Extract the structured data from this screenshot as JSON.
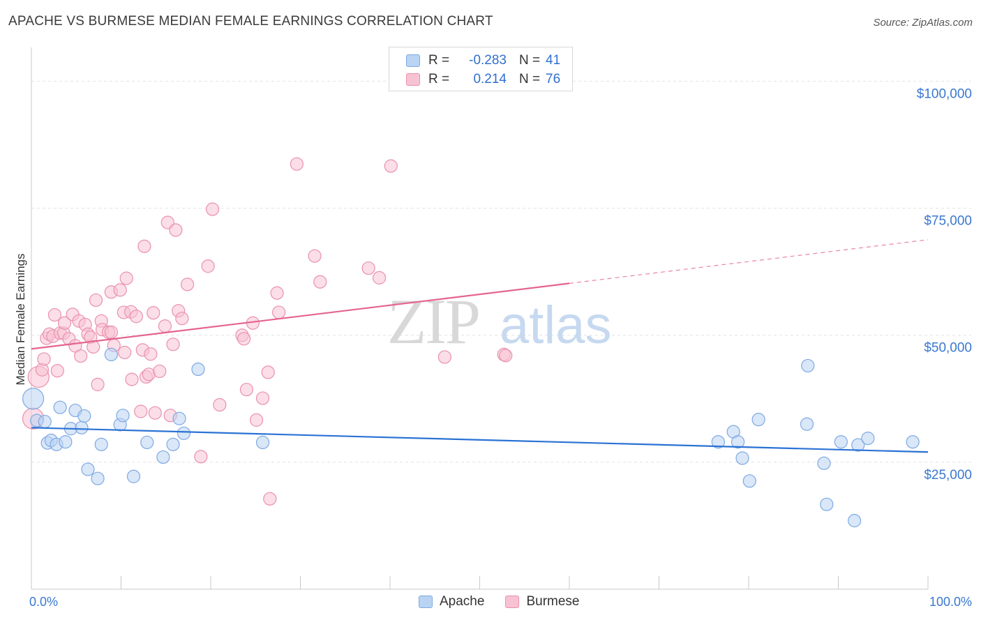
{
  "title": "APACHE VS BURMESE MEDIAN FEMALE EARNINGS CORRELATION CHART",
  "source": "Source: ZipAtlas.com",
  "watermark": {
    "zip": "ZIP",
    "atlas": "atlas"
  },
  "legend": {
    "rows": [
      {
        "r_label": "R =",
        "r_value": "-0.283",
        "n_label": "N =",
        "n_value": "41"
      },
      {
        "r_label": "R =",
        "r_value": "0.214",
        "n_label": "N =",
        "n_value": "76"
      }
    ]
  },
  "bottom_legend": {
    "apache": "Apache",
    "burmese": "Burmese"
  },
  "colors": {
    "apache_fill": "#b9d3f3",
    "apache_stroke": "#7ea9e3",
    "apache_line": "#2a72d4",
    "burmese_fill": "#f7c3d3",
    "burmese_stroke": "#ea90ae",
    "burmese_line": "#e5648e",
    "tick_label": "#3a78d0",
    "grid": "#e2e2e2"
  },
  "chart_data": {
    "type": "scatter",
    "ylabel": "Median Female Earnings",
    "xlim": [
      0,
      100
    ],
    "ylim": [
      0,
      105000
    ],
    "x_tick_labels": [
      "0.0%",
      "100.0%"
    ],
    "y_ticks": [
      {
        "value": 25000,
        "label": "$25,000"
      },
      {
        "value": 50000,
        "label": "$50,000"
      },
      {
        "value": 75000,
        "label": "$75,000"
      },
      {
        "value": 100000,
        "label": "$100,000"
      }
    ],
    "grid": "horizontal dashed",
    "series": [
      {
        "name": "Apache",
        "color": "#7ea9e3",
        "trend": {
          "x0": 0,
          "y0": 31800,
          "x1": 100,
          "y1": 27000,
          "dashed_from": null
        },
        "points": [
          [
            0.2,
            37500,
            "large"
          ],
          [
            0.6,
            33200
          ],
          [
            1.5,
            33000
          ],
          [
            1.8,
            28800
          ],
          [
            2.2,
            29300
          ],
          [
            2.8,
            28500
          ],
          [
            3.2,
            35800
          ],
          [
            3.8,
            29000
          ],
          [
            4.4,
            31600
          ],
          [
            4.9,
            35200
          ],
          [
            5.6,
            31800
          ],
          [
            5.9,
            34100
          ],
          [
            6.3,
            23600
          ],
          [
            7.4,
            21800
          ],
          [
            7.8,
            28500
          ],
          [
            8.9,
            46200
          ],
          [
            9.9,
            32400
          ],
          [
            10.2,
            34200
          ],
          [
            11.4,
            22200
          ],
          [
            12.9,
            28900
          ],
          [
            14.7,
            26000
          ],
          [
            15.8,
            28500
          ],
          [
            16.5,
            33600
          ],
          [
            17.0,
            30700
          ],
          [
            18.6,
            43300
          ],
          [
            25.8,
            28900
          ],
          [
            76.6,
            29000
          ],
          [
            78.3,
            31000
          ],
          [
            78.8,
            29000
          ],
          [
            79.3,
            25800
          ],
          [
            80.1,
            21300
          ],
          [
            81.1,
            33400
          ],
          [
            86.5,
            32500
          ],
          [
            86.6,
            44000
          ],
          [
            88.4,
            24800
          ],
          [
            88.7,
            16700
          ],
          [
            90.3,
            29000
          ],
          [
            91.8,
            13500
          ],
          [
            92.2,
            28400
          ],
          [
            93.3,
            29700
          ],
          [
            98.3,
            29000
          ]
        ]
      },
      {
        "name": "Burmese",
        "color": "#ea90ae",
        "trend": {
          "x0": 0,
          "y0": 47300,
          "x1": 100,
          "y1": 68800,
          "dashed_from": 60
        },
        "points": [
          [
            0.2,
            33600,
            "large"
          ],
          [
            0.8,
            41800,
            "large"
          ],
          [
            1.2,
            43200
          ],
          [
            1.4,
            45300
          ],
          [
            1.7,
            49400
          ],
          [
            2.0,
            50200
          ],
          [
            2.4,
            49800
          ],
          [
            2.6,
            54000
          ],
          [
            2.9,
            43000
          ],
          [
            3.2,
            50400
          ],
          [
            3.6,
            50400
          ],
          [
            3.7,
            52400
          ],
          [
            4.2,
            49300
          ],
          [
            4.6,
            54100
          ],
          [
            4.9,
            47900
          ],
          [
            5.3,
            52800
          ],
          [
            5.5,
            45900
          ],
          [
            6.0,
            52100
          ],
          [
            6.3,
            50200
          ],
          [
            6.6,
            49600
          ],
          [
            6.9,
            47700
          ],
          [
            7.2,
            56900
          ],
          [
            7.4,
            40300
          ],
          [
            7.8,
            52800
          ],
          [
            7.9,
            51100
          ],
          [
            8.6,
            50600
          ],
          [
            8.9,
            50600
          ],
          [
            8.9,
            58500
          ],
          [
            9.2,
            48000
          ],
          [
            9.9,
            58900
          ],
          [
            10.3,
            54500
          ],
          [
            10.4,
            46600
          ],
          [
            10.6,
            61200
          ],
          [
            11.1,
            54600
          ],
          [
            11.2,
            41300
          ],
          [
            11.7,
            53700
          ],
          [
            12.2,
            35000
          ],
          [
            12.4,
            47100
          ],
          [
            12.6,
            67500
          ],
          [
            12.8,
            41800
          ],
          [
            13.1,
            42300
          ],
          [
            13.3,
            46300
          ],
          [
            13.6,
            54400
          ],
          [
            13.8,
            34700
          ],
          [
            14.3,
            42900
          ],
          [
            14.9,
            51800
          ],
          [
            15.2,
            72200
          ],
          [
            15.5,
            34200
          ],
          [
            15.8,
            48200
          ],
          [
            16.1,
            70700
          ],
          [
            16.4,
            54800
          ],
          [
            16.8,
            53300
          ],
          [
            17.4,
            60000
          ],
          [
            18.9,
            26100
          ],
          [
            19.7,
            63600
          ],
          [
            20.2,
            74800
          ],
          [
            21.0,
            36300
          ],
          [
            23.5,
            50000
          ],
          [
            23.7,
            49300
          ],
          [
            24.0,
            39300
          ],
          [
            24.7,
            52400
          ],
          [
            25.1,
            33300
          ],
          [
            25.8,
            37600
          ],
          [
            26.4,
            42700
          ],
          [
            26.6,
            17800
          ],
          [
            27.4,
            58300
          ],
          [
            27.6,
            54500
          ],
          [
            29.6,
            83700
          ],
          [
            31.6,
            65600
          ],
          [
            32.2,
            60500
          ],
          [
            37.6,
            63200
          ],
          [
            38.8,
            61300
          ],
          [
            40.1,
            83300
          ],
          [
            46.1,
            45700
          ],
          [
            52.7,
            46200
          ],
          [
            52.9,
            46000
          ]
        ]
      }
    ]
  }
}
